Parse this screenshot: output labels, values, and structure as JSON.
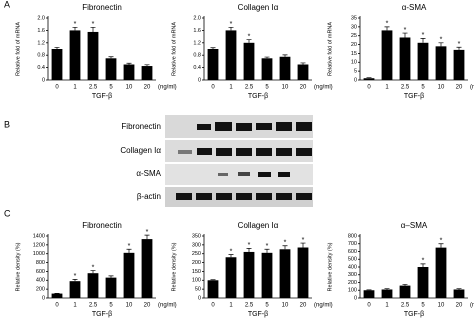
{
  "panels": [
    "A",
    "B",
    "C"
  ],
  "blot": {
    "labels": [
      "Fibronectin",
      "Collagen Iα",
      "α-SMA",
      "β-actin"
    ]
  },
  "chart_data": [
    {
      "type": "bar",
      "title": "Fibronectin",
      "ylabel": "Relative fold of mRNA",
      "xlabel": "TGF-β",
      "xunit": "(ng/ml)",
      "categories": [
        "0",
        "1",
        "2.5",
        "5",
        "10",
        "20"
      ],
      "values": [
        1.0,
        1.6,
        1.55,
        0.7,
        0.5,
        0.45
      ],
      "errors": [
        0.05,
        0.1,
        0.15,
        0.05,
        0.04,
        0.04
      ],
      "significance": [
        null,
        "*",
        "*",
        null,
        null,
        null
      ],
      "color": "#000000",
      "ylim": [
        0,
        2
      ],
      "yticks": [
        0,
        {
          "value": 0.4,
          "label": "0.4"
        },
        {
          "value": 0.8,
          "label": "0.8"
        },
        {
          "value": 1.2,
          "label": "1.2"
        },
        {
          "value": 1.6,
          "label": "1.6"
        },
        {
          "value": 2,
          "label": "2.0"
        }
      ]
    },
    {
      "type": "bar",
      "title": "Collagen Iα",
      "ylabel": "Relative fold of mRNA",
      "xlabel": "TGF-β",
      "xunit": "(ng/ml)",
      "categories": [
        "0",
        "1",
        "2.5",
        "5",
        "10",
        "20"
      ],
      "values": [
        1.0,
        1.6,
        1.2,
        0.7,
        0.75,
        0.5
      ],
      "errors": [
        0.04,
        0.1,
        0.1,
        0.04,
        0.06,
        0.05
      ],
      "significance": [
        null,
        "*",
        "*",
        null,
        null,
        null
      ],
      "color": "#000000",
      "ylim": [
        0,
        2
      ],
      "yticks": [
        0,
        {
          "value": 0.4,
          "label": "0.4"
        },
        {
          "value": 0.8,
          "label": "0.8"
        },
        {
          "value": 1.2,
          "label": "1.2"
        },
        {
          "value": 1.6,
          "label": "1.6"
        },
        {
          "value": 2,
          "label": "2.0"
        }
      ]
    },
    {
      "type": "bar",
      "title": "α-SMA",
      "ylabel": "Relative fold of mRNA",
      "xlabel": "TGF-β",
      "xunit": "(ng/ml)",
      "categories": [
        "0",
        "1",
        "2.5",
        "5",
        "10",
        "20"
      ],
      "values": [
        1,
        28,
        24,
        21,
        19,
        17
      ],
      "errors": [
        0.3,
        2,
        2.5,
        2.5,
        2,
        1.5
      ],
      "significance": [
        null,
        "*",
        "*",
        "*",
        "*",
        "*"
      ],
      "color": "#000000",
      "ylim": [
        0,
        35
      ],
      "yticks": [
        0,
        5,
        10,
        15,
        20,
        25,
        30,
        35
      ]
    },
    {
      "type": "bar",
      "title": "Fibronectin",
      "ylabel": "Relative density (%)",
      "xlabel": "TGF-β",
      "xunit": "(ng/ml)",
      "categories": [
        "0",
        "1",
        "2.5",
        "5",
        "10",
        "20"
      ],
      "values": [
        100,
        380,
        560,
        460,
        1020,
        1330
      ],
      "errors": [
        5,
        40,
        60,
        40,
        80,
        90
      ],
      "significance": [
        null,
        "*",
        "*",
        null,
        "*",
        "*"
      ],
      "color": "#000000",
      "ylim": [
        0,
        1400
      ],
      "yticks": [
        0,
        200,
        400,
        600,
        800,
        1000,
        1200,
        1400
      ]
    },
    {
      "type": "bar",
      "title": "Collagen Iα",
      "ylabel": "Relative density (%)",
      "xlabel": "TGF-β",
      "xunit": "(ng/ml)",
      "categories": [
        "0",
        "1",
        "2.5",
        "5",
        "10",
        "20"
      ],
      "values": [
        100,
        230,
        260,
        255,
        275,
        285
      ],
      "errors": [
        3,
        15,
        20,
        20,
        20,
        25
      ],
      "significance": [
        null,
        "*",
        "*",
        "*",
        "*",
        "*"
      ],
      "color": "#000000",
      "ylim": [
        0,
        350
      ],
      "yticks": [
        0,
        50,
        100,
        150,
        200,
        250,
        300,
        350
      ]
    },
    {
      "type": "bar",
      "title": "α–SMA",
      "ylabel": "Relative density (%)",
      "xlabel": "TGF-β",
      "xunit": "(ng/ml)",
      "categories": [
        "0",
        "1",
        "2.5",
        "5",
        "10",
        "20"
      ],
      "values": [
        100,
        110,
        160,
        400,
        650,
        110
      ],
      "errors": [
        5,
        10,
        15,
        40,
        50,
        10
      ],
      "significance": [
        null,
        null,
        null,
        "*",
        "*",
        null
      ],
      "color": "#000000",
      "ylim": [
        0,
        800
      ],
      "yticks": [
        0,
        100,
        200,
        300,
        400,
        500,
        600,
        700,
        800
      ]
    }
  ]
}
